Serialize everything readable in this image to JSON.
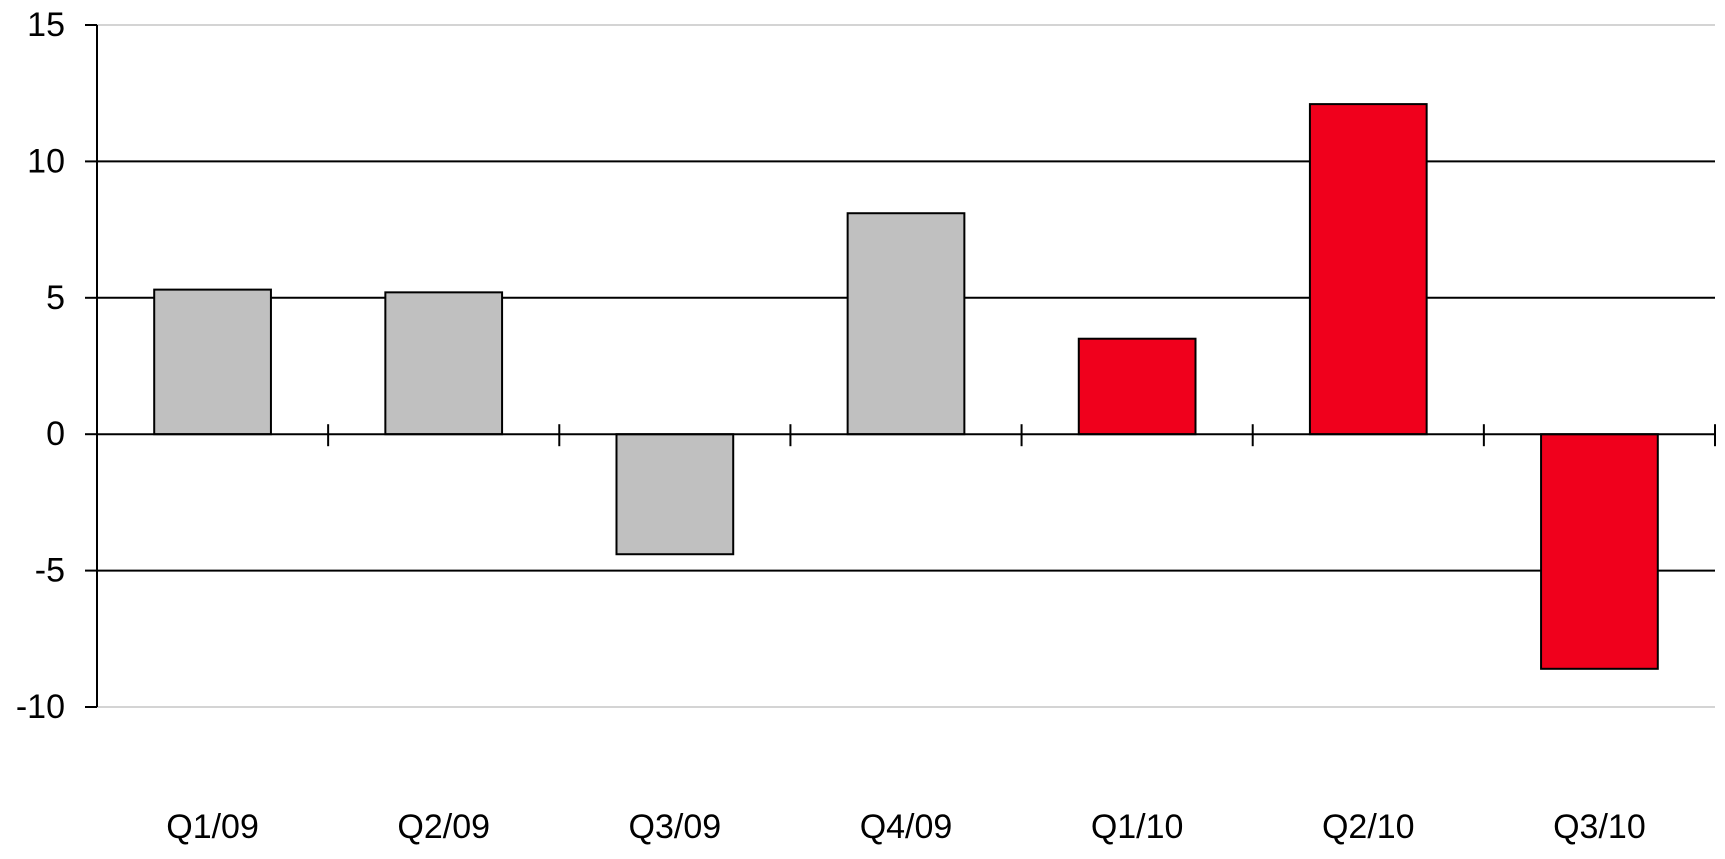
{
  "chart_data": {
    "type": "bar",
    "title": "",
    "xlabel": "",
    "ylabel": "",
    "categories": [
      "Q1/09",
      "Q2/09",
      "Q3/09",
      "Q4/09",
      "Q1/10",
      "Q2/10",
      "Q3/10"
    ],
    "values": [
      5.3,
      5.2,
      -4.4,
      8.1,
      3.5,
      12.1,
      -8.6
    ],
    "bar_colors": [
      "#c0c0c0",
      "#c0c0c0",
      "#c0c0c0",
      "#c0c0c0",
      "#f0001c",
      "#f0001c",
      "#f0001c"
    ],
    "ylim": [
      -10,
      15
    ],
    "yticks": [
      15,
      10,
      5,
      0,
      -5,
      -10
    ],
    "ytick_labels": [
      "15",
      "10",
      "5",
      "0",
      "-5",
      "-10"
    ],
    "grid": true,
    "legend": "none"
  }
}
